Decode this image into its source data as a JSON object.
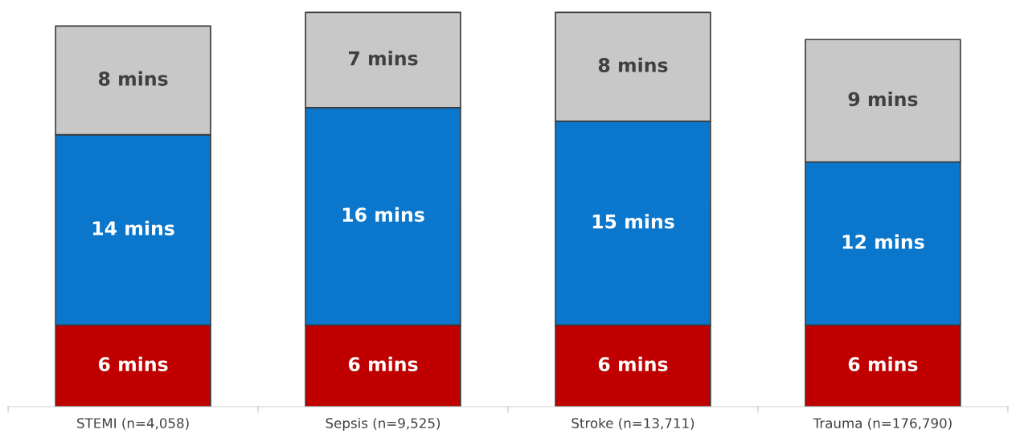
{
  "chart_data": {
    "type": "bar",
    "stacked": true,
    "categories": [
      "STEMI (n=4,058)",
      "Sepsis (n=9,525)",
      "Stroke (n=13,711)",
      "Trauma (n=176,790)"
    ],
    "series": [
      {
        "color": "#c00000",
        "values": [
          6,
          6,
          6,
          6
        ],
        "value_labels": [
          "6 mins",
          "6 mins",
          "6 mins",
          "6 mins"
        ]
      },
      {
        "color": "#0a77cc",
        "values": [
          14,
          16,
          15,
          12
        ],
        "value_labels": [
          "14 mins",
          "16 mins",
          "15 mins",
          "12 mins"
        ]
      },
      {
        "color": "#c8c8c8",
        "values": [
          8,
          7,
          8,
          9
        ],
        "value_labels": [
          "8 mins",
          "7 mins",
          "8 mins",
          "9 mins"
        ]
      }
    ],
    "tick_labels": "x",
    "grid": false,
    "legend": false
  }
}
